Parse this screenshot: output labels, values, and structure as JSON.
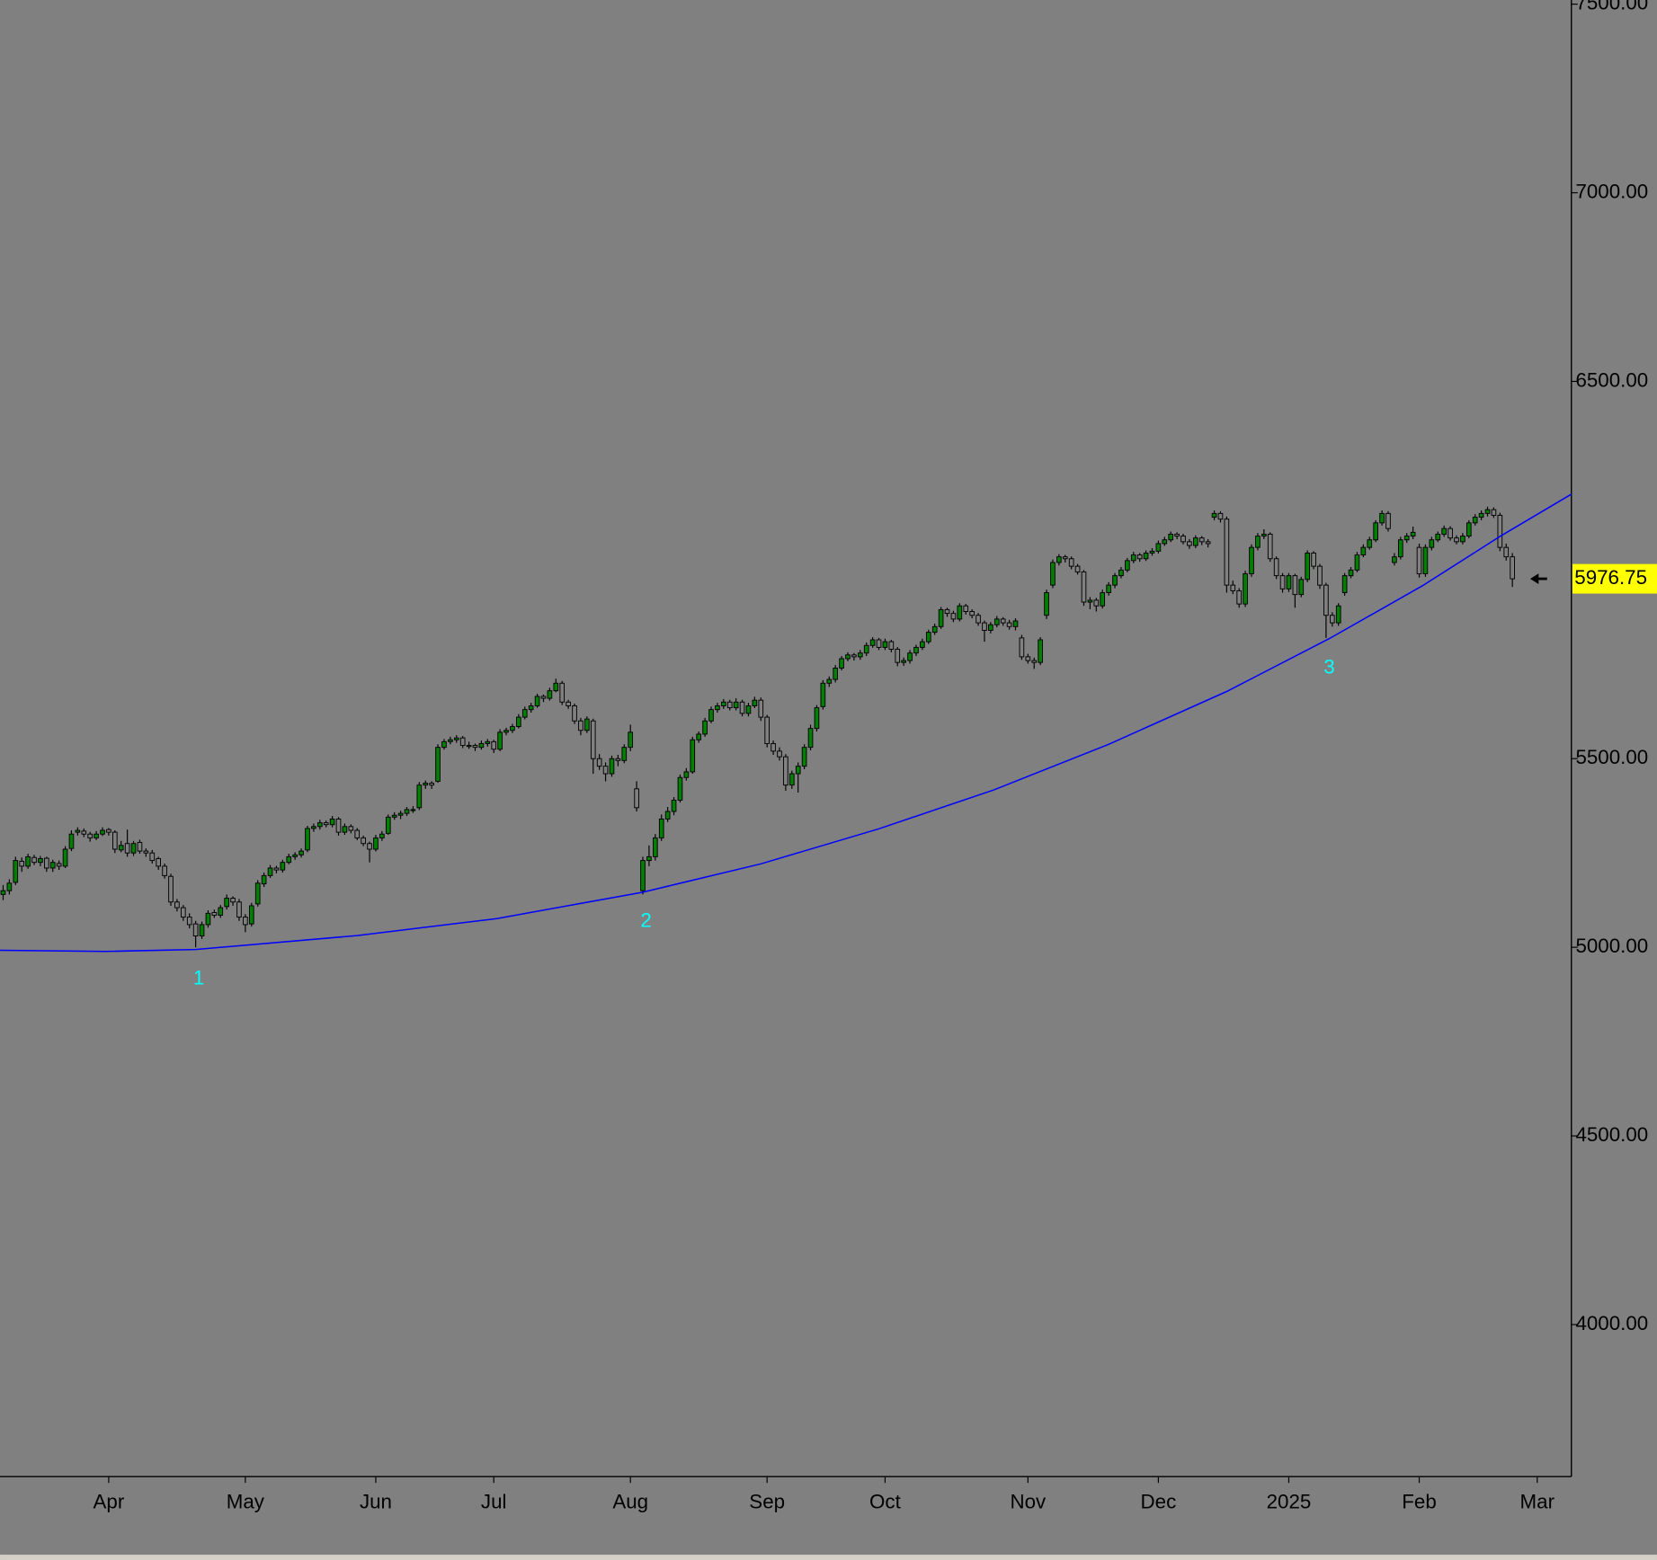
{
  "chart_data": {
    "type": "candlestick",
    "background": "#808080",
    "up_color": "#008000",
    "down_color": "#808080",
    "wick_color": "#000000",
    "grid": false,
    "xlim": [
      -0.5,
      252.5
    ],
    "xticks": [
      {
        "value": 17,
        "label": "Apr"
      },
      {
        "value": 39,
        "label": "May"
      },
      {
        "value": 60,
        "label": "Jun"
      },
      {
        "value": 79,
        "label": "Jul"
      },
      {
        "value": 101,
        "label": "Aug"
      },
      {
        "value": 123,
        "label": "Sep"
      },
      {
        "value": 142,
        "label": "Oct"
      },
      {
        "value": 165,
        "label": "Nov"
      },
      {
        "value": 186,
        "label": "Dec"
      },
      {
        "value": 207,
        "label": "2025"
      },
      {
        "value": 228,
        "label": "Feb"
      },
      {
        "value": 247,
        "label": "Mar"
      }
    ],
    "ylim": [
      3597,
      7511
    ],
    "yticks": [
      {
        "value": 4000,
        "label": "4000.00"
      },
      {
        "value": 4500,
        "label": "4500.00"
      },
      {
        "value": 5000,
        "label": "5000.00"
      },
      {
        "value": 5500,
        "label": "5500.00"
      },
      {
        "value": 6500,
        "label": "6500.00"
      },
      {
        "value": 7000,
        "label": "7000.00"
      },
      {
        "value": 7500,
        "label": "7500.00"
      }
    ],
    "last_price": 5976.75,
    "trendline": {
      "color": "#0000ff",
      "x": [
        -0.5,
        16.5,
        31,
        57,
        79.5,
        103,
        122,
        141,
        159.5,
        178,
        197,
        213.5,
        228.5,
        241,
        252.5
      ],
      "values": [
        4992,
        4989,
        4994,
        5031,
        5076,
        5146,
        5221,
        5314,
        5417,
        5538,
        5678,
        5818,
        5958,
        6089,
        6201
      ]
    },
    "annotations": [
      {
        "text": "1",
        "x": 31,
        "y": 4994,
        "color": "#00ffff"
      },
      {
        "text": "2",
        "x": 103,
        "y": 5146,
        "color": "#00ffff"
      },
      {
        "text": "3",
        "x": 213,
        "y": 5818,
        "color": "#00ffff"
      }
    ],
    "ohlc": [
      [
        5140,
        5165,
        5125,
        5150
      ],
      [
        5150,
        5180,
        5140,
        5170
      ],
      [
        5172,
        5240,
        5165,
        5230
      ],
      [
        5228,
        5238,
        5200,
        5215
      ],
      [
        5215,
        5248,
        5208,
        5240
      ],
      [
        5238,
        5245,
        5218,
        5225
      ],
      [
        5225,
        5242,
        5215,
        5235
      ],
      [
        5236,
        5240,
        5200,
        5210
      ],
      [
        5210,
        5232,
        5200,
        5225
      ],
      [
        5222,
        5230,
        5205,
        5215
      ],
      [
        5215,
        5268,
        5210,
        5260
      ],
      [
        5262,
        5310,
        5255,
        5300
      ],
      [
        5305,
        5318,
        5296,
        5310
      ],
      [
        5308,
        5315,
        5292,
        5300
      ],
      [
        5300,
        5306,
        5280,
        5290
      ],
      [
        5290,
        5308,
        5284,
        5300
      ],
      [
        5300,
        5318,
        5295,
        5310
      ],
      [
        5312,
        5316,
        5296,
        5305
      ],
      [
        5305,
        5310,
        5250,
        5260
      ],
      [
        5258,
        5282,
        5252,
        5270
      ],
      [
        5275,
        5312,
        5240,
        5250
      ],
      [
        5250,
        5282,
        5242,
        5275
      ],
      [
        5278,
        5285,
        5248,
        5255
      ],
      [
        5255,
        5262,
        5240,
        5250
      ],
      [
        5250,
        5258,
        5222,
        5230
      ],
      [
        5235,
        5240,
        5205,
        5215
      ],
      [
        5215,
        5222,
        5182,
        5190
      ],
      [
        5188,
        5195,
        5110,
        5120
      ],
      [
        5120,
        5128,
        5095,
        5105
      ],
      [
        5105,
        5112,
        5070,
        5080
      ],
      [
        5080,
        5090,
        5050,
        5060
      ],
      [
        5062,
        5070,
        5000,
        5030
      ],
      [
        5030,
        5068,
        5022,
        5060
      ],
      [
        5060,
        5098,
        5052,
        5090
      ],
      [
        5092,
        5100,
        5078,
        5085
      ],
      [
        5085,
        5112,
        5078,
        5105
      ],
      [
        5108,
        5140,
        5100,
        5130
      ],
      [
        5130,
        5135,
        5110,
        5120
      ],
      [
        5120,
        5128,
        5070,
        5080
      ],
      [
        5080,
        5088,
        5040,
        5060
      ],
      [
        5062,
        5118,
        5055,
        5110
      ],
      [
        5115,
        5178,
        5108,
        5170
      ],
      [
        5168,
        5198,
        5160,
        5190
      ],
      [
        5190,
        5218,
        5184,
        5210
      ],
      [
        5210,
        5216,
        5196,
        5205
      ],
      [
        5205,
        5232,
        5198,
        5225
      ],
      [
        5225,
        5248,
        5220,
        5240
      ],
      [
        5240,
        5252,
        5232,
        5245
      ],
      [
        5245,
        5262,
        5238,
        5255
      ],
      [
        5258,
        5322,
        5252,
        5315
      ],
      [
        5315,
        5328,
        5306,
        5320
      ],
      [
        5320,
        5338,
        5312,
        5330
      ],
      [
        5330,
        5336,
        5318,
        5325
      ],
      [
        5325,
        5348,
        5318,
        5340
      ],
      [
        5340,
        5345,
        5296,
        5305
      ],
      [
        5305,
        5328,
        5298,
        5320
      ],
      [
        5320,
        5326,
        5302,
        5310
      ],
      [
        5310,
        5316,
        5284,
        5290
      ],
      [
        5290,
        5296,
        5268,
        5275
      ],
      [
        5275,
        5280,
        5225,
        5260
      ],
      [
        5260,
        5298,
        5254,
        5290
      ],
      [
        5290,
        5308,
        5282,
        5300
      ],
      [
        5302,
        5352,
        5298,
        5345
      ],
      [
        5345,
        5358,
        5338,
        5350
      ],
      [
        5350,
        5362,
        5340,
        5355
      ],
      [
        5355,
        5372,
        5348,
        5365
      ],
      [
        5365,
        5374,
        5356,
        5365
      ],
      [
        5370,
        5438,
        5364,
        5430
      ],
      [
        5430,
        5442,
        5420,
        5435
      ],
      [
        5435,
        5440,
        5420,
        5430
      ],
      [
        5440,
        5538,
        5436,
        5530
      ],
      [
        5530,
        5552,
        5524,
        5545
      ],
      [
        5545,
        5558,
        5538,
        5550
      ],
      [
        5550,
        5562,
        5542,
        5555
      ],
      [
        5555,
        5560,
        5528,
        5535
      ],
      [
        5535,
        5545,
        5526,
        5535
      ],
      [
        5535,
        5540,
        5520,
        5530
      ],
      [
        5530,
        5548,
        5524,
        5540
      ],
      [
        5540,
        5552,
        5532,
        5545
      ],
      [
        5545,
        5550,
        5515,
        5525
      ],
      [
        5525,
        5578,
        5520,
        5570
      ],
      [
        5570,
        5582,
        5562,
        5575
      ],
      [
        5575,
        5592,
        5568,
        5585
      ],
      [
        5585,
        5618,
        5580,
        5610
      ],
      [
        5610,
        5638,
        5604,
        5630
      ],
      [
        5630,
        5648,
        5622,
        5640
      ],
      [
        5640,
        5672,
        5635,
        5665
      ],
      [
        5665,
        5670,
        5650,
        5660
      ],
      [
        5660,
        5688,
        5654,
        5680
      ],
      [
        5680,
        5712,
        5676,
        5700
      ],
      [
        5700,
        5706,
        5642,
        5650
      ],
      [
        5650,
        5656,
        5632,
        5640
      ],
      [
        5640,
        5646,
        5592,
        5600
      ],
      [
        5600,
        5608,
        5562,
        5575
      ],
      [
        5575,
        5612,
        5568,
        5605
      ],
      [
        5600,
        5606,
        5460,
        5500
      ],
      [
        5500,
        5512,
        5470,
        5480
      ],
      [
        5480,
        5490,
        5440,
        5460
      ],
      [
        5460,
        5508,
        5452,
        5500
      ],
      [
        5500,
        5510,
        5480,
        5495
      ],
      [
        5495,
        5538,
        5488,
        5530
      ],
      [
        5530,
        5590,
        5520,
        5570
      ],
      [
        5420,
        5440,
        5360,
        5370
      ],
      [
        5150,
        5240,
        5140,
        5230
      ],
      [
        5230,
        5270,
        5215,
        5240
      ],
      [
        5240,
        5300,
        5230,
        5290
      ],
      [
        5290,
        5352,
        5282,
        5340
      ],
      [
        5340,
        5372,
        5332,
        5360
      ],
      [
        5360,
        5398,
        5350,
        5390
      ],
      [
        5390,
        5458,
        5384,
        5450
      ],
      [
        5450,
        5475,
        5442,
        5465
      ],
      [
        5465,
        5558,
        5460,
        5550
      ],
      [
        5550,
        5572,
        5542,
        5565
      ],
      [
        5565,
        5608,
        5558,
        5600
      ],
      [
        5600,
        5638,
        5594,
        5630
      ],
      [
        5630,
        5648,
        5622,
        5640
      ],
      [
        5640,
        5658,
        5632,
        5650
      ],
      [
        5650,
        5656,
        5628,
        5635
      ],
      [
        5635,
        5660,
        5628,
        5650
      ],
      [
        5650,
        5656,
        5612,
        5620
      ],
      [
        5620,
        5648,
        5612,
        5640
      ],
      [
        5640,
        5664,
        5634,
        5655
      ],
      [
        5655,
        5662,
        5600,
        5610
      ],
      [
        5610,
        5616,
        5530,
        5540
      ],
      [
        5540,
        5548,
        5510,
        5520
      ],
      [
        5520,
        5530,
        5495,
        5505
      ],
      [
        5505,
        5512,
        5415,
        5430
      ],
      [
        5430,
        5468,
        5420,
        5460
      ],
      [
        5460,
        5490,
        5410,
        5480
      ],
      [
        5480,
        5538,
        5472,
        5530
      ],
      [
        5530,
        5590,
        5522,
        5580
      ],
      [
        5580,
        5642,
        5572,
        5635
      ],
      [
        5638,
        5708,
        5630,
        5700
      ],
      [
        5700,
        5718,
        5690,
        5710
      ],
      [
        5710,
        5748,
        5702,
        5740
      ],
      [
        5740,
        5772,
        5734,
        5765
      ],
      [
        5765,
        5782,
        5758,
        5775
      ],
      [
        5775,
        5780,
        5760,
        5770
      ],
      [
        5770,
        5788,
        5762,
        5780
      ],
      [
        5780,
        5808,
        5772,
        5800
      ],
      [
        5800,
        5822,
        5794,
        5815
      ],
      [
        5815,
        5820,
        5788,
        5795
      ],
      [
        5795,
        5818,
        5788,
        5810
      ],
      [
        5810,
        5815,
        5782,
        5790
      ],
      [
        5790,
        5796,
        5745,
        5755
      ],
      [
        5755,
        5768,
        5746,
        5760
      ],
      [
        5760,
        5788,
        5752,
        5780
      ],
      [
        5780,
        5802,
        5772,
        5795
      ],
      [
        5795,
        5818,
        5788,
        5810
      ],
      [
        5810,
        5842,
        5804,
        5835
      ],
      [
        5835,
        5858,
        5828,
        5850
      ],
      [
        5850,
        5902,
        5844,
        5895
      ],
      [
        5895,
        5900,
        5876,
        5885
      ],
      [
        5885,
        5892,
        5862,
        5870
      ],
      [
        5870,
        5912,
        5864,
        5905
      ],
      [
        5905,
        5910,
        5882,
        5890
      ],
      [
        5890,
        5896,
        5872,
        5880
      ],
      [
        5880,
        5886,
        5852,
        5860
      ],
      [
        5860,
        5866,
        5810,
        5840
      ],
      [
        5840,
        5862,
        5832,
        5855
      ],
      [
        5855,
        5878,
        5848,
        5870
      ],
      [
        5870,
        5875,
        5852,
        5860
      ],
      [
        5860,
        5868,
        5842,
        5850
      ],
      [
        5850,
        5872,
        5840,
        5865
      ],
      [
        5820,
        5828,
        5762,
        5770
      ],
      [
        5770,
        5778,
        5752,
        5760
      ],
      [
        5760,
        5768,
        5738,
        5755
      ],
      [
        5755,
        5822,
        5748,
        5815
      ],
      [
        5880,
        5948,
        5870,
        5940
      ],
      [
        5960,
        6028,
        5952,
        6020
      ],
      [
        6020,
        6042,
        6012,
        6035
      ],
      [
        6035,
        6040,
        6020,
        6030
      ],
      [
        6030,
        6036,
        6002,
        6010
      ],
      [
        6010,
        6016,
        5988,
        5995
      ],
      [
        5995,
        6000,
        5905,
        5915
      ],
      [
        5915,
        5928,
        5896,
        5920
      ],
      [
        5920,
        5926,
        5890,
        5905
      ],
      [
        5905,
        5948,
        5898,
        5940
      ],
      [
        5940,
        5968,
        5932,
        5960
      ],
      [
        5960,
        5992,
        5952,
        5985
      ],
      [
        5985,
        6008,
        5978,
        6000
      ],
      [
        6000,
        6032,
        5994,
        6025
      ],
      [
        6025,
        6048,
        6018,
        6040
      ],
      [
        6040,
        6045,
        6022,
        6030
      ],
      [
        6030,
        6052,
        6024,
        6045
      ],
      [
        6045,
        6058,
        6038,
        6050
      ],
      [
        6050,
        6078,
        6044,
        6070
      ],
      [
        6070,
        6088,
        6064,
        6080
      ],
      [
        6080,
        6102,
        6074,
        6095
      ],
      [
        6095,
        6100,
        6082,
        6090
      ],
      [
        6090,
        6096,
        6068,
        6075
      ],
      [
        6075,
        6082,
        6056,
        6065
      ],
      [
        6065,
        6092,
        6058,
        6085
      ],
      [
        6085,
        6090,
        6066,
        6075
      ],
      [
        6075,
        6082,
        6060,
        6070
      ],
      [
        6140,
        6158,
        6132,
        6150
      ],
      [
        6150,
        6156,
        6126,
        6135
      ],
      [
        6135,
        6142,
        5940,
        5960
      ],
      [
        5960,
        5972,
        5936,
        5945
      ],
      [
        5945,
        5952,
        5900,
        5910
      ],
      [
        5910,
        5998,
        5902,
        5990
      ],
      [
        5990,
        6068,
        5982,
        6060
      ],
      [
        6060,
        6098,
        6052,
        6090
      ],
      [
        6090,
        6108,
        6082,
        6095
      ],
      [
        6095,
        6100,
        6022,
        6030
      ],
      [
        6030,
        6036,
        5976,
        5985
      ],
      [
        5985,
        5992,
        5940,
        5950
      ],
      [
        5950,
        5992,
        5942,
        5985
      ],
      [
        5985,
        5990,
        5900,
        5935
      ],
      [
        5935,
        5982,
        5928,
        5975
      ],
      [
        5975,
        6052,
        5968,
        6045
      ],
      [
        6045,
        6050,
        6002,
        6010
      ],
      [
        6010,
        6016,
        5950,
        5960
      ],
      [
        5960,
        5966,
        5820,
        5880
      ],
      [
        5880,
        5888,
        5850,
        5860
      ],
      [
        5860,
        5912,
        5852,
        5905
      ],
      [
        5940,
        5992,
        5932,
        5985
      ],
      [
        5985,
        6008,
        5978,
        6000
      ],
      [
        6000,
        6048,
        5994,
        6040
      ],
      [
        6040,
        6068,
        6034,
        6060
      ],
      [
        6060,
        6088,
        6054,
        6080
      ],
      [
        6080,
        6132,
        6074,
        6125
      ],
      [
        6125,
        6158,
        6118,
        6150
      ],
      [
        6150,
        6156,
        6102,
        6110
      ],
      [
        6020,
        6045,
        6012,
        6035
      ],
      [
        6035,
        6088,
        6028,
        6080
      ],
      [
        6080,
        6098,
        6072,
        6090
      ],
      [
        6090,
        6115,
        6082,
        6100
      ],
      [
        6060,
        6070,
        5980,
        5990
      ],
      [
        5990,
        6068,
        5982,
        6060
      ],
      [
        6060,
        6088,
        6052,
        6080
      ],
      [
        6080,
        6102,
        6074,
        6095
      ],
      [
        6095,
        6118,
        6088,
        6110
      ],
      [
        6110,
        6116,
        6078,
        6085
      ],
      [
        6085,
        6092,
        6068,
        6075
      ],
      [
        6075,
        6098,
        6068,
        6090
      ],
      [
        6090,
        6132,
        6084,
        6125
      ],
      [
        6125,
        6148,
        6118,
        6140
      ],
      [
        6140,
        6158,
        6132,
        6150
      ],
      [
        6150,
        6168,
        6142,
        6160
      ],
      [
        6160,
        6166,
        6138,
        6145
      ],
      [
        6145,
        6152,
        6050,
        6060
      ],
      [
        6060,
        6070,
        6025,
        6035
      ],
      [
        6035,
        6045,
        5955,
        5976.75
      ]
    ]
  }
}
